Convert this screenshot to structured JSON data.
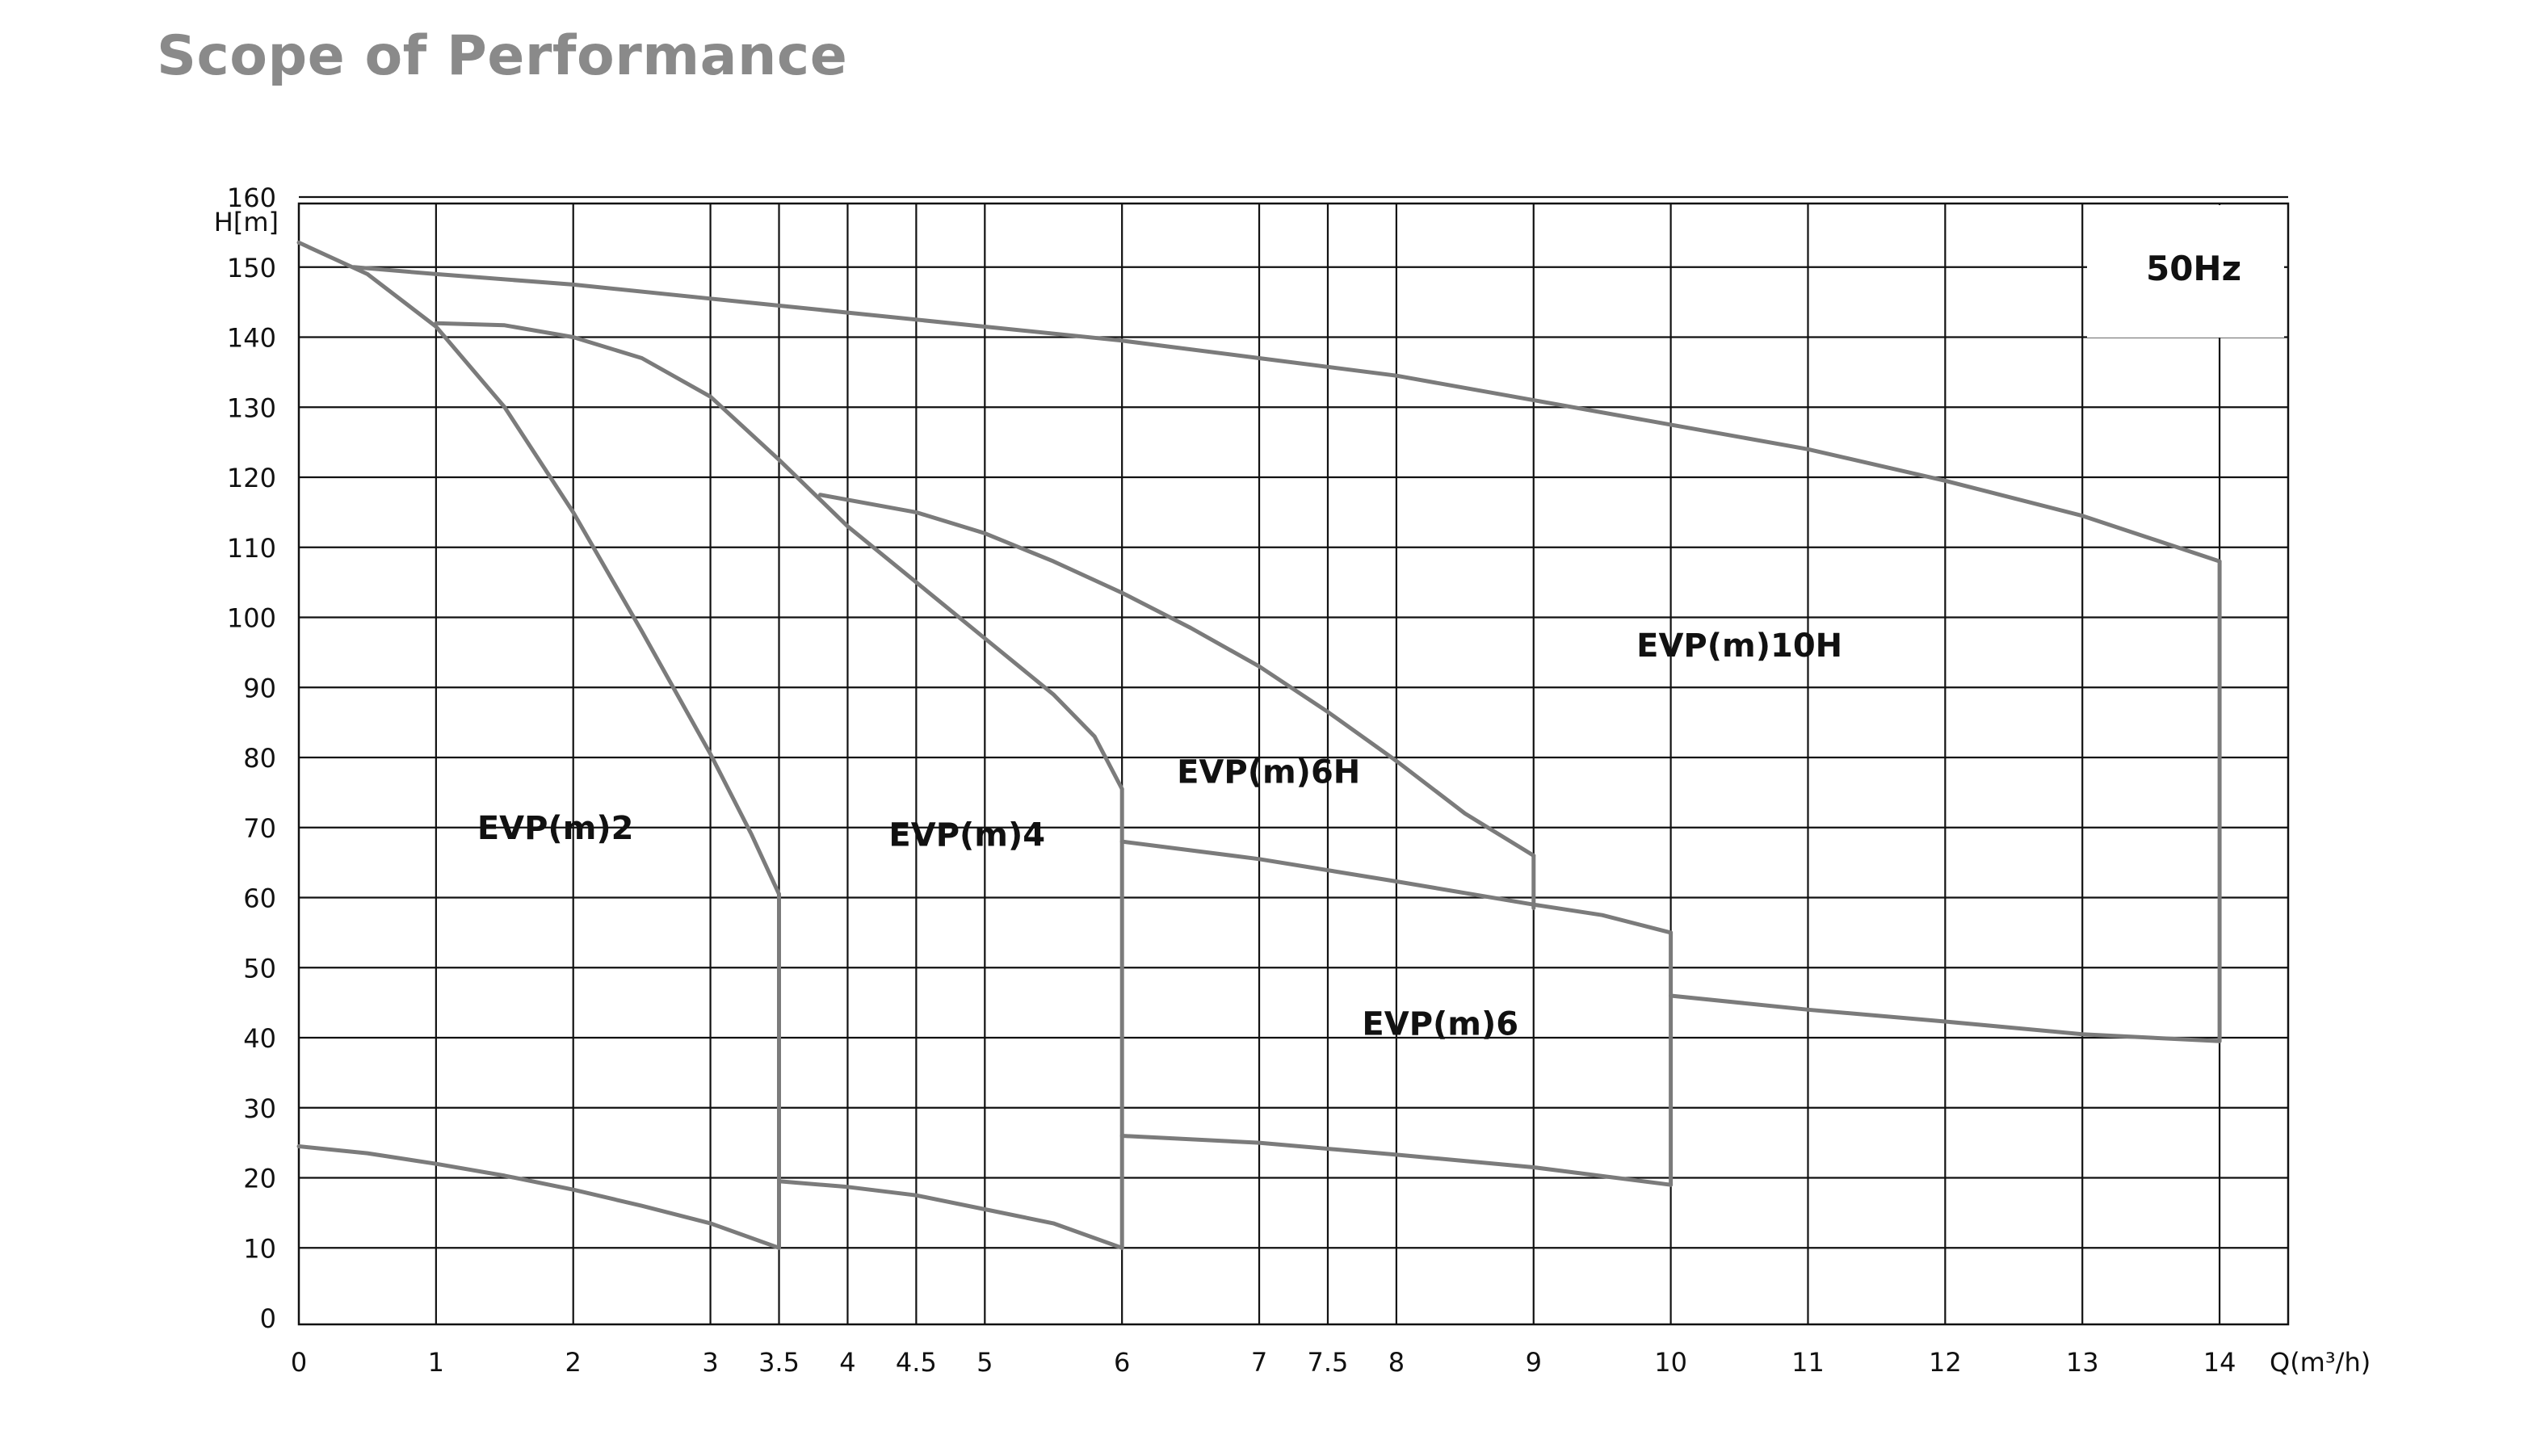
{
  "page": {
    "title": "Scope of Performance"
  },
  "chart_data": {
    "type": "line",
    "title": "",
    "ylabel": "H[m]",
    "xlabel_html": "Q(m³/h)",
    "xlabel": "Q(m³/h)",
    "frequency_label": "50Hz",
    "xlim": [
      0,
      14.5
    ],
    "ylim": [
      0,
      160
    ],
    "grid": true,
    "x_ticks": [
      0,
      1,
      2,
      3,
      3.5,
      4,
      4.5,
      5,
      6,
      7,
      7.5,
      8,
      9,
      10,
      11,
      12,
      13,
      14
    ],
    "x_tick_labels": [
      "0",
      "1",
      "2",
      "3",
      "3.5",
      "4",
      "4.5",
      "5",
      "6",
      "7",
      "7.5",
      "8",
      "9",
      "10",
      "11",
      "12",
      "13",
      "14"
    ],
    "y_ticks": [
      0,
      10,
      20,
      30,
      40,
      50,
      60,
      70,
      80,
      90,
      100,
      110,
      120,
      130,
      140,
      150,
      160
    ],
    "y_tick_labels": [
      "0",
      "10",
      "20",
      "30",
      "40",
      "50",
      "60",
      "70",
      "80",
      "90",
      "100",
      "110",
      "120",
      "130",
      "140",
      "150",
      "160"
    ],
    "series": [
      {
        "name": "EVP(m)2",
        "label_pos": [
          1.3,
          70
        ],
        "curves": [
          [
            [
              0,
              153.5
            ],
            [
              0.5,
              149
            ],
            [
              1,
              141.5
            ],
            [
              1.5,
              130
            ],
            [
              2,
              115
            ],
            [
              2.5,
              98
            ],
            [
              3,
              80.5
            ],
            [
              3.3,
              69
            ],
            [
              3.5,
              60.5
            ]
          ],
          [
            [
              0,
              24.5
            ],
            [
              0.5,
              23.5
            ],
            [
              1,
              22
            ],
            [
              1.5,
              20.3
            ],
            [
              2,
              18.3
            ],
            [
              2.5,
              16
            ],
            [
              3,
              13.5
            ],
            [
              3.5,
              10
            ]
          ],
          [
            [
              3.5,
              60.5
            ],
            [
              3.5,
              10
            ]
          ]
        ]
      },
      {
        "name": "EVP(m)4",
        "label_pos": [
          4.3,
          69
        ],
        "curves": [
          [
            [
              1,
              142
            ],
            [
              1.5,
              141.7
            ],
            [
              2,
              140
            ],
            [
              2.5,
              137
            ],
            [
              3,
              131.5
            ],
            [
              3.5,
              122.5
            ],
            [
              4,
              113
            ],
            [
              4.5,
              105
            ],
            [
              5,
              97
            ],
            [
              5.5,
              89
            ],
            [
              5.8,
              83
            ],
            [
              6,
              75.5
            ]
          ],
          [
            [
              3.5,
              19.5
            ],
            [
              4,
              18.7
            ],
            [
              4.5,
              17.5
            ],
            [
              5,
              15.5
            ],
            [
              5.5,
              13.5
            ],
            [
              6,
              10
            ]
          ],
          [
            [
              6,
              75.5
            ],
            [
              6,
              10
            ]
          ]
        ]
      },
      {
        "name": "EVP(m)6H",
        "label_pos": [
          6.4,
          78
        ],
        "curves": [
          [
            [
              3.8,
              117.5
            ],
            [
              4.5,
              115
            ],
            [
              5,
              112
            ],
            [
              5.5,
              108
            ],
            [
              6,
              103.5
            ],
            [
              6.5,
              98.5
            ],
            [
              7,
              93
            ],
            [
              7.5,
              86.5
            ],
            [
              8,
              79.5
            ],
            [
              8.5,
              72
            ],
            [
              9,
              66
            ]
          ],
          [
            [
              9,
              66
            ],
            [
              9,
              58.5
            ]
          ]
        ]
      },
      {
        "name": "EVP(m)6",
        "label_pos": [
          7.75,
          42
        ],
        "curves": [
          [
            [
              6,
              68
            ],
            [
              7,
              65.5
            ],
            [
              8,
              62.3
            ],
            [
              9,
              59
            ],
            [
              9.5,
              57.5
            ],
            [
              10,
              55
            ]
          ],
          [
            [
              6,
              26
            ],
            [
              7,
              25
            ],
            [
              8,
              23.3
            ],
            [
              9,
              21.5
            ],
            [
              10,
              19
            ]
          ],
          [
            [
              10,
              55
            ],
            [
              10,
              19
            ]
          ]
        ]
      },
      {
        "name": "EVP(m)10H",
        "label_pos": [
          9.75,
          96
        ],
        "curves": [
          [
            [
              0.4,
              150
            ],
            [
              1,
              149
            ],
            [
              2,
              147.5
            ],
            [
              3,
              145.5
            ],
            [
              4,
              143.5
            ],
            [
              5,
              141.5
            ],
            [
              6,
              139.5
            ],
            [
              7,
              137
            ],
            [
              8,
              134.5
            ],
            [
              9,
              131
            ],
            [
              10,
              127.5
            ],
            [
              11,
              124
            ],
            [
              12,
              119.5
            ],
            [
              13,
              114.5
            ],
            [
              14,
              108
            ]
          ],
          [
            [
              10,
              46
            ],
            [
              11,
              44
            ],
            [
              12,
              42.3
            ],
            [
              13,
              40.5
            ],
            [
              14,
              39.5
            ]
          ],
          [
            [
              14,
              108
            ],
            [
              14,
              39.5
            ]
          ]
        ]
      }
    ]
  },
  "style": {
    "curve_color": "#7b7b7b",
    "grid_color": "#111111",
    "text_color": "#111111"
  }
}
